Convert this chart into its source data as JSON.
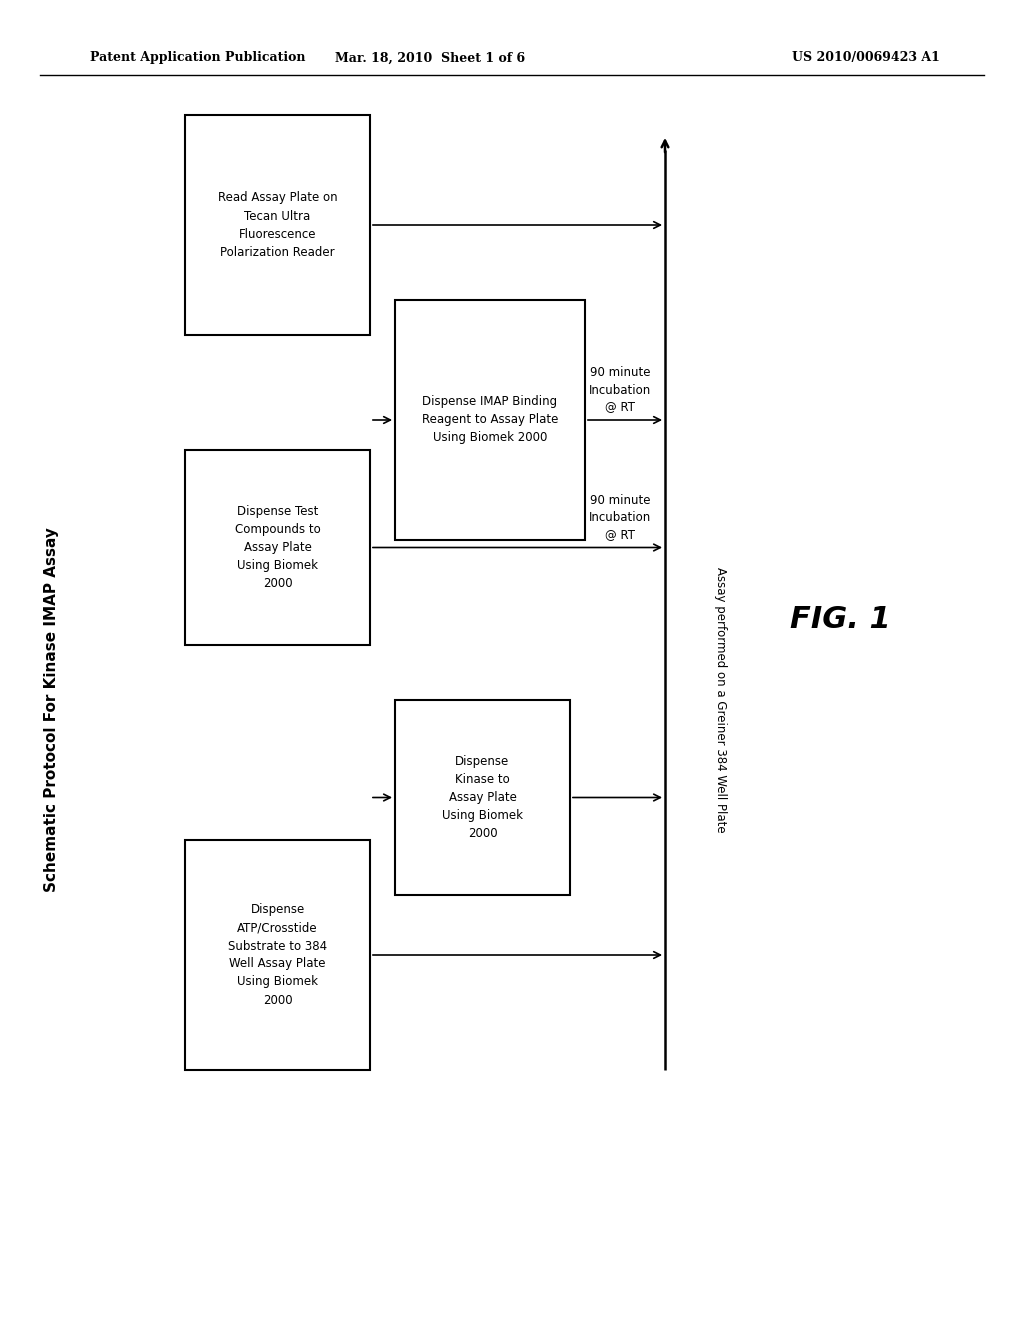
{
  "header_left": "Patent Application Publication",
  "header_mid": "Mar. 18, 2010  Sheet 1 of 6",
  "header_right": "US 2010/0069423 A1",
  "fig_label": "FIG. 1",
  "vertical_line_label": "Assay performed on a Greiner 384 Well Plate",
  "sidebar_label": "Schematic Protocol For Kinase IMAP Assay",
  "background": "#ffffff"
}
